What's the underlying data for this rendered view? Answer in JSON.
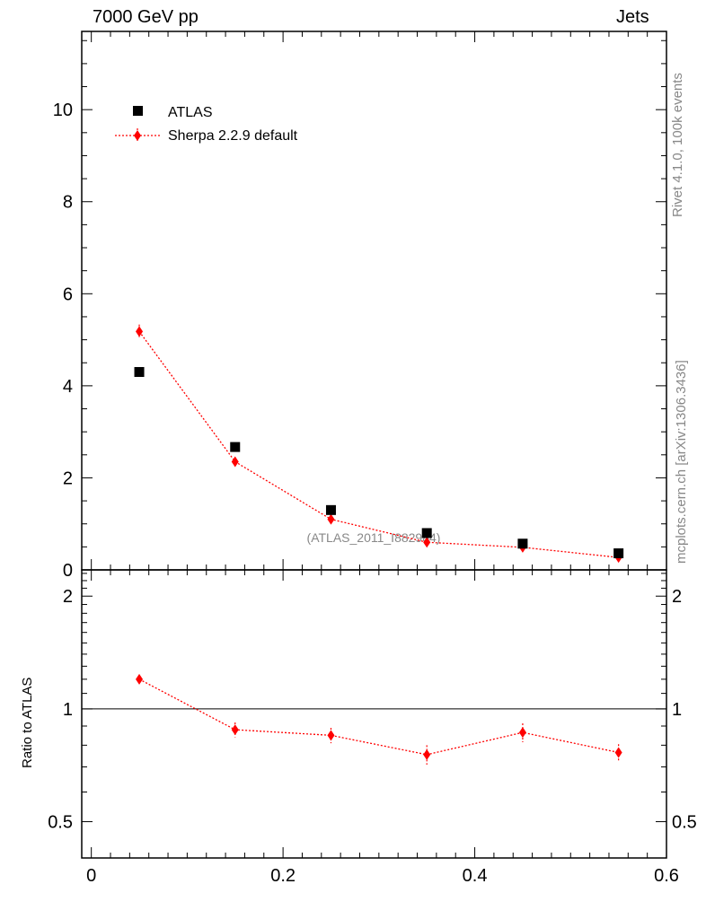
{
  "header": {
    "left": "7000 GeV pp",
    "right": "Jets"
  },
  "side_labels": {
    "top": "Rivet 4.1.0,  100k events",
    "bottom": "mcplots.cern.ch [arXiv:1306.3436]"
  },
  "colors": {
    "data": "#000000",
    "mc": "#ff0000",
    "reference_text": "#888888",
    "side_text": "#888888"
  },
  "chart_data": [
    {
      "type": "scatter",
      "panel": "main",
      "annotation": "(ATLAS_2011_I882984)",
      "xlim": [
        -0.01,
        0.6
      ],
      "ylim": [
        0,
        11.7
      ],
      "yticks": [
        0,
        2,
        4,
        6,
        8,
        10
      ],
      "ytick_labels": [
        "0",
        "2",
        "4",
        "6",
        "8",
        "10"
      ],
      "legend_position": "top-left",
      "series": [
        {
          "name": "ATLAS",
          "marker": "square",
          "x": [
            0.05,
            0.15,
            0.25,
            0.35,
            0.45,
            0.55
          ],
          "y": [
            4.3,
            2.67,
            1.3,
            0.8,
            0.57,
            0.36
          ]
        },
        {
          "name": "Sherpa 2.2.9 default",
          "marker": "diamond",
          "line": "dotted",
          "x": [
            0.05,
            0.15,
            0.25,
            0.35,
            0.45,
            0.55
          ],
          "y": [
            5.18,
            2.35,
            1.1,
            0.6,
            0.49,
            0.27
          ],
          "err": [
            0.15,
            0.1,
            0.07,
            0.05,
            0.05,
            0.04
          ]
        }
      ]
    },
    {
      "type": "line",
      "panel": "ratio",
      "ylabel": "Ratio to ATLAS",
      "xlim": [
        -0.01,
        0.6
      ],
      "ylim": [
        0.4,
        2.35
      ],
      "yscale": "log",
      "yticks": [
        0.5,
        1,
        2
      ],
      "ytick_labels": [
        "0.5",
        "1",
        "2"
      ],
      "xticks": [
        0,
        0.2,
        0.4,
        0.6
      ],
      "xtick_labels": [
        "0",
        "0.2",
        "0.4",
        "0.6"
      ],
      "reference_line": 1,
      "series": [
        {
          "name": "Sherpa 2.2.9 default",
          "marker": "diamond",
          "line": "dotted",
          "x": [
            0.05,
            0.15,
            0.25,
            0.35,
            0.45,
            0.55
          ],
          "y": [
            1.2,
            0.88,
            0.85,
            0.755,
            0.865,
            0.765
          ],
          "err": [
            0.03,
            0.04,
            0.04,
            0.045,
            0.05,
            0.04
          ]
        }
      ]
    }
  ]
}
